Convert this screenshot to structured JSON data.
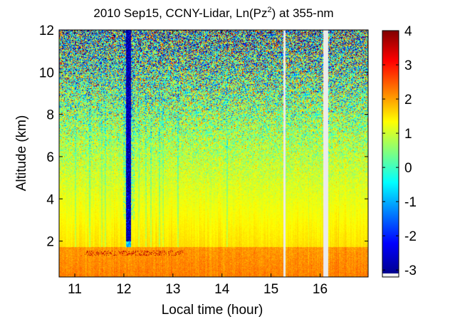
{
  "chart_data": {
    "type": "heatmap",
    "title_main": "2010 Sep15, CCNY-Lidar, Ln(Pz",
    "title_sup": "2",
    "title_tail": ") at 355-nm",
    "xlabel": "Local time (hour)",
    "ylabel": "Altitude (km)",
    "xlim": [
      10.68,
      16.98
    ],
    "ylim": [
      0.3,
      12.0
    ],
    "x_ticks": [
      11,
      12,
      13,
      14,
      15,
      16
    ],
    "y_ticks": [
      2,
      4,
      6,
      8,
      10,
      12
    ],
    "colorbar": {
      "min": -3.1,
      "max": 4.0,
      "ticks": [
        -3,
        -2,
        -1,
        0,
        1,
        2,
        3,
        4
      ],
      "colormap": "jet"
    },
    "features": {
      "boundary_layer_top_km": 1.7,
      "dense_cloud": {
        "x_start": 12.05,
        "x_end": 12.15,
        "bottom_km": 1.7
      },
      "data_gaps": [
        {
          "x_start": 15.25,
          "x_end": 15.29
        },
        {
          "x_start": 16.07,
          "x_end": 16.16
        }
      ]
    }
  }
}
